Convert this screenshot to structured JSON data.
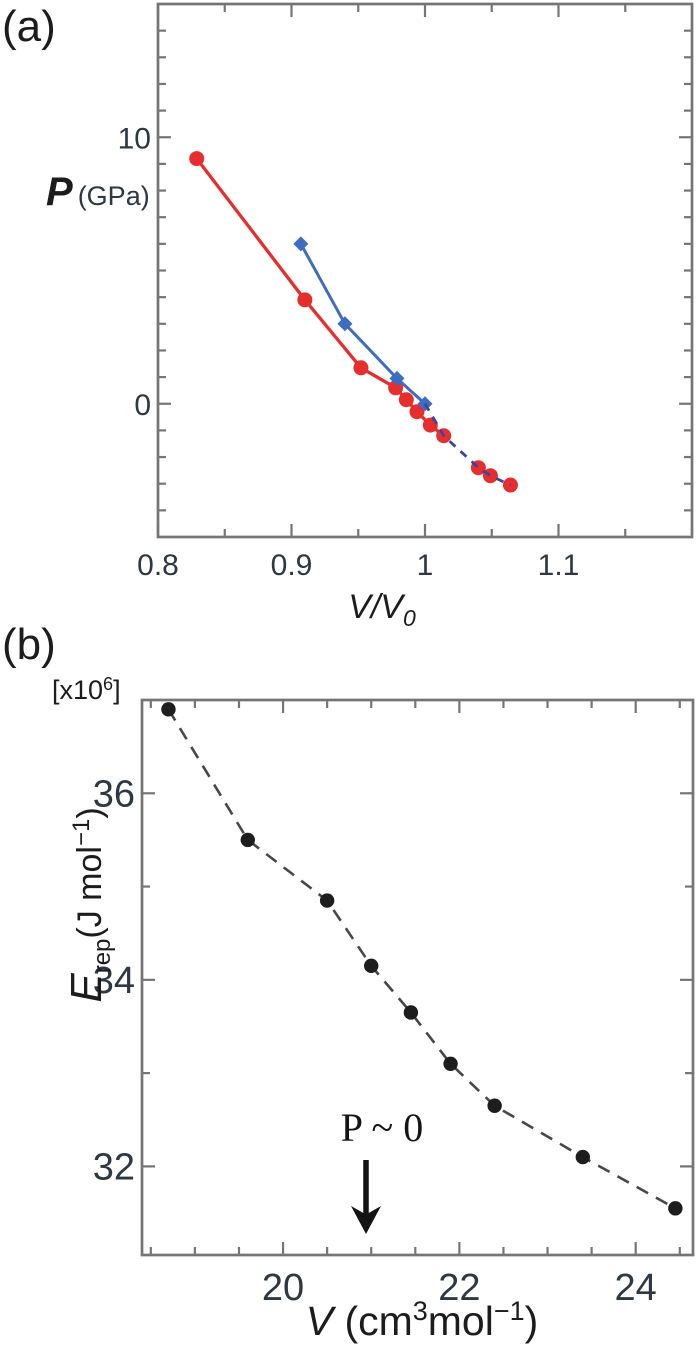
{
  "figure": {
    "panel_a": {
      "panel_label": "(a)",
      "y_axis": {
        "symbol": "P",
        "unit": "(GPa)"
      },
      "x_axis": {
        "main": "V/V",
        "sub": "0"
      }
    },
    "panel_b": {
      "panel_label": "(b)",
      "scale": {
        "pre": "[x10",
        "sup": "6",
        "post": "]"
      },
      "y_axis": {
        "symbol": "E",
        "sub": "rep",
        "unit_pre": "(J mol",
        "unit_sup": "−1",
        "unit_post": ")"
      },
      "x_axis": {
        "symbol": "V",
        "pre": " (cm",
        "sup1": "3",
        "mid": "mol",
        "sup2": "−1",
        "post": ")"
      }
    }
  },
  "chart_data": [
    {
      "type": "line",
      "title": "",
      "xlabel": "V/V0",
      "ylabel": "P (GPa)",
      "x_range": [
        0.8,
        1.2
      ],
      "y_range": [
        -5,
        15
      ],
      "grid": false,
      "frame_color": "#757575",
      "tick_label_color": "#2e3742",
      "x_ticks_major": {
        "values": [
          0.8,
          0.9,
          1.0,
          1.1
        ],
        "labels": [
          "0.8",
          "0.9",
          "1",
          "1.1"
        ]
      },
      "x_ticks_minor": [
        0.85,
        0.95,
        1.05,
        1.15
      ],
      "y_ticks_major": {
        "values": [
          10,
          0
        ],
        "labels": [
          "10",
          "0"
        ]
      },
      "y_ticks_minor": [
        -4,
        -3,
        -2,
        -1,
        1,
        2,
        3,
        4,
        5,
        6,
        7,
        8,
        9,
        11,
        12,
        13,
        14
      ],
      "series": [
        {
          "name": "red-circles-compression",
          "marker": "circle",
          "marker_size": 7.5,
          "color": "#e62e2e",
          "line": "solid",
          "line_width": 3.3,
          "line_through": 8,
          "points": [
            [
              0.829,
              9.2
            ],
            [
              0.91,
              3.9
            ],
            [
              0.952,
              1.35
            ],
            [
              0.978,
              0.6
            ],
            [
              0.986,
              0.15
            ],
            [
              0.994,
              -0.3
            ],
            [
              1.004,
              -0.8
            ],
            [
              1.014,
              -1.2
            ],
            [
              1.04,
              -2.4
            ],
            [
              1.049,
              -2.7
            ],
            [
              1.064,
              -3.05
            ]
          ]
        },
        {
          "name": "blue-diamonds",
          "marker": "diamond",
          "marker_size": 7.5,
          "color": "#3d6cc2",
          "line": "solid",
          "line_width": 3,
          "points": [
            [
              0.907,
              6.0
            ],
            [
              0.94,
              3.0
            ],
            [
              0.979,
              0.95
            ],
            [
              1.0,
              0.0
            ]
          ]
        },
        {
          "name": "dashed-extrapolation",
          "marker": "none",
          "marker_size": 0,
          "color": "#3c45a0",
          "line": "dashed",
          "line_width": 2.8,
          "dash": [
            8,
            7
          ],
          "points": [
            [
              1.0,
              0.0
            ],
            [
              1.014,
              -1.2
            ],
            [
              1.04,
              -2.4
            ],
            [
              1.049,
              -2.7
            ],
            [
              1.064,
              -3.05
            ]
          ]
        }
      ]
    },
    {
      "type": "line",
      "title": "",
      "xlabel": "V (cm3 mol-1)",
      "ylabel": "E rep (J mol-1) [x10^6]",
      "x_range": [
        18.4,
        24.65
      ],
      "y_range": [
        31.05,
        37.0
      ],
      "grid": false,
      "frame_color": "#757575",
      "tick_label_color": "#2e3742",
      "x_ticks_major": {
        "values": [
          20,
          22,
          24
        ],
        "labels": [
          "20",
          "22",
          "24"
        ]
      },
      "x_ticks_minor": [
        18.5,
        19,
        19.5,
        20.5,
        21,
        21.5,
        22.5,
        23,
        23.5,
        24.5
      ],
      "y_ticks_major": {
        "values": [
          36,
          34,
          32
        ],
        "labels": [
          "36",
          "34",
          "32"
        ]
      },
      "y_ticks_minor": [
        35,
        33
      ],
      "series": [
        {
          "name": "erep-points",
          "marker": "circle",
          "marker_size": 7.2,
          "color": "#1d1d1d",
          "line": "dashed",
          "line_color": "#474747",
          "line_width": 2.6,
          "dash": [
            13,
            9
          ],
          "points": [
            [
              18.7,
              36.9
            ],
            [
              19.6,
              35.5
            ],
            [
              20.5,
              34.85
            ],
            [
              21.0,
              34.15
            ],
            [
              21.45,
              33.65
            ],
            [
              21.9,
              33.1
            ],
            [
              22.4,
              32.65
            ],
            [
              23.4,
              32.1
            ],
            [
              24.45,
              31.55
            ]
          ]
        }
      ],
      "annotation": {
        "text": "P ~ 0",
        "arrow_at_x": 21.0,
        "arrow_direction": "down"
      }
    }
  ]
}
